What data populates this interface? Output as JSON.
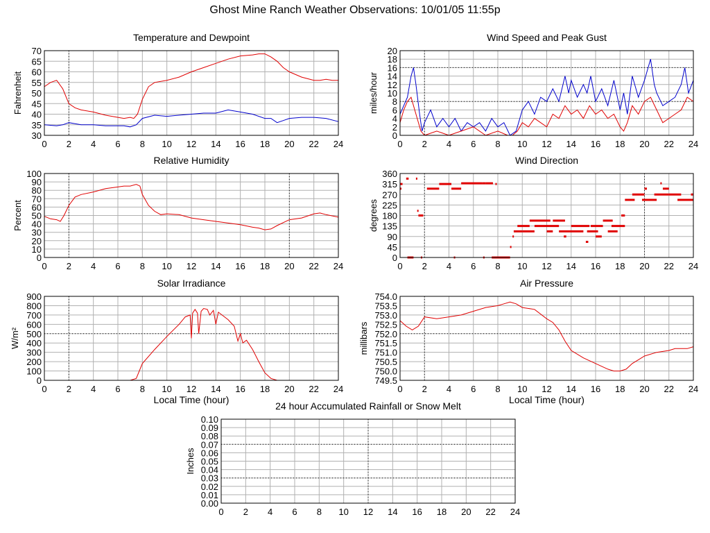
{
  "page_title": "Ghost Mine Ranch Weather Observations: 10/01/05 11:55p",
  "colors": {
    "red": "#e00000",
    "blue": "#0000cc",
    "grid": "#b0b0b0",
    "frame": "#000000"
  },
  "chart_data": [
    {
      "id": "temp",
      "type": "line",
      "title": "Temperature and Dewpoint",
      "xlabel": "",
      "ylabel": "Fahrenheit",
      "xlim": [
        0,
        24
      ],
      "ylim": [
        30,
        70
      ],
      "xticks": [
        "0",
        "2",
        "4",
        "6",
        "8",
        "10",
        "12",
        "14",
        "16",
        "18",
        "20",
        "22",
        "24"
      ],
      "yticks": [
        "30",
        "35",
        "40",
        "45",
        "50",
        "55",
        "60",
        "65",
        "70"
      ],
      "series": [
        {
          "color": "#e00000",
          "x": [
            0,
            0.5,
            1,
            1.5,
            2,
            2.5,
            3,
            4,
            5,
            6,
            6.5,
            7,
            7.3,
            7.6,
            8,
            8.5,
            9,
            10,
            11,
            12,
            13,
            14,
            15,
            16,
            17,
            17.5,
            18,
            18.5,
            19,
            19.5,
            20,
            21,
            22,
            22.5,
            23,
            23.5,
            24
          ],
          "y": [
            53,
            55,
            56,
            52,
            45,
            43,
            42,
            41,
            39.5,
            38.5,
            38,
            38.5,
            38,
            40,
            47,
            53,
            55,
            56,
            57.5,
            60,
            62,
            64,
            66,
            67.5,
            68,
            68.5,
            68.5,
            67,
            65,
            62,
            60,
            57.5,
            56,
            56,
            56.5,
            56,
            56
          ]
        },
        {
          "color": "#0000cc",
          "x": [
            0,
            1,
            1.5,
            2,
            2.5,
            3,
            4,
            5,
            6,
            6.5,
            7,
            7.5,
            8,
            9,
            10,
            11,
            12,
            13,
            14,
            15,
            16,
            17,
            18,
            18.5,
            19,
            19.5,
            20,
            21,
            22,
            23,
            24
          ],
          "y": [
            35,
            34.5,
            35,
            36,
            35.5,
            35,
            35,
            34.5,
            34.5,
            34.5,
            34,
            35,
            38,
            39.5,
            39,
            39.5,
            40,
            40.5,
            40.5,
            42,
            41,
            40,
            38,
            38,
            36,
            37,
            38,
            38.5,
            38.5,
            38,
            36.5
          ]
        }
      ]
    },
    {
      "id": "wind",
      "type": "line",
      "title": "Wind Speed and Peak Gust",
      "xlabel": "",
      "ylabel": "miles/hour",
      "xlim": [
        0,
        24
      ],
      "ylim": [
        0,
        20
      ],
      "xticks": [
        "0",
        "2",
        "4",
        "6",
        "8",
        "10",
        "12",
        "14",
        "16",
        "18",
        "20",
        "22",
        "24"
      ],
      "yticks": [
        "0",
        "2",
        "4",
        "6",
        "8",
        "10",
        "12",
        "14",
        "16",
        "18",
        "20"
      ],
      "series": [
        {
          "color": "#0000cc",
          "x": [
            0,
            0.3,
            0.6,
            0.9,
            1.1,
            1.3,
            1.6,
            1.8,
            2,
            2.5,
            3,
            3.5,
            4,
            4.5,
            5,
            5.5,
            6,
            6.5,
            7,
            7.5,
            8,
            8.5,
            9,
            9.5,
            10,
            10.5,
            11,
            11.5,
            12,
            12.5,
            13,
            13.5,
            13.8,
            14,
            14.5,
            15,
            15.3,
            15.6,
            16,
            16.5,
            17,
            17.5,
            18,
            18.3,
            18.6,
            19,
            19.5,
            20,
            20.3,
            20.5,
            20.8,
            21,
            21.5,
            22,
            22.5,
            23,
            23.3,
            23.6,
            24
          ],
          "y": [
            5,
            7,
            9,
            14,
            16,
            12,
            5,
            1,
            3,
            6,
            2,
            4,
            2,
            4,
            1,
            3,
            2,
            3,
            1,
            4,
            2,
            3,
            0,
            1,
            6,
            8,
            5,
            9,
            8,
            11,
            8,
            14,
            10,
            13,
            9,
            12,
            10,
            14,
            8,
            11,
            7,
            13,
            6,
            10,
            5,
            14,
            9,
            13,
            16,
            18,
            12,
            10,
            7,
            8,
            9,
            12,
            16,
            10,
            13
          ]
        },
        {
          "color": "#e00000",
          "x": [
            0,
            0.3,
            0.6,
            0.9,
            1.1,
            1.4,
            1.7,
            2,
            3,
            4,
            5,
            6,
            7,
            8,
            8.8,
            9.2,
            9.6,
            10,
            10.5,
            11,
            11.5,
            12,
            12.5,
            13,
            13.5,
            14,
            14.5,
            15,
            15.5,
            16,
            16.5,
            17,
            17.5,
            18,
            18.3,
            18.6,
            19,
            19.5,
            20,
            20.5,
            21,
            21.5,
            22,
            22.5,
            23,
            23.5,
            24
          ],
          "y": [
            3,
            6,
            8,
            9,
            7,
            4,
            1,
            0,
            1,
            0,
            1,
            2,
            0,
            1,
            0,
            0,
            1,
            3,
            2,
            4,
            3,
            2,
            5,
            4,
            7,
            5,
            6,
            4,
            7,
            5,
            6,
            4,
            5,
            2,
            1,
            3,
            7,
            5,
            8,
            9,
            6,
            3,
            4,
            5,
            6,
            9,
            8
          ]
        }
      ]
    },
    {
      "id": "rh",
      "type": "line",
      "title": "Relative Humidity",
      "xlabel": "",
      "ylabel": "Percent",
      "xlim": [
        0,
        24
      ],
      "ylim": [
        0,
        100
      ],
      "xticks": [
        "0",
        "2",
        "4",
        "6",
        "8",
        "10",
        "12",
        "14",
        "16",
        "18",
        "20",
        "22",
        "24"
      ],
      "yticks": [
        "0",
        "10",
        "20",
        "30",
        "40",
        "50",
        "60",
        "70",
        "80",
        "90",
        "100"
      ],
      "series": [
        {
          "color": "#e00000",
          "x": [
            0,
            0.5,
            1,
            1.3,
            1.6,
            2,
            2.5,
            3,
            4,
            5,
            6,
            6.5,
            7,
            7.5,
            7.8,
            8,
            8.5,
            9,
            9.5,
            10,
            11,
            12,
            13,
            14,
            15,
            16,
            17,
            17.5,
            18,
            18.5,
            19,
            20,
            21,
            22,
            22.5,
            23,
            24
          ],
          "y": [
            49,
            46,
            45,
            43,
            50,
            62,
            72,
            75,
            78,
            82,
            84,
            85,
            85,
            87,
            85,
            75,
            62,
            55,
            51,
            52,
            51,
            47,
            45,
            43,
            41,
            39,
            36,
            35,
            33,
            34,
            38,
            45,
            47,
            52,
            53,
            51,
            48
          ]
        }
      ]
    },
    {
      "id": "wdir",
      "type": "scatter",
      "title": "Wind Direction",
      "xlabel": "",
      "ylabel": "degrees",
      "xlim": [
        0,
        24
      ],
      "ylim": [
        0,
        360
      ],
      "xticks": [
        "0",
        "2",
        "4",
        "6",
        "8",
        "10",
        "12",
        "14",
        "16",
        "18",
        "20",
        "22",
        "24"
      ],
      "yticks": [
        "0",
        "45",
        "90",
        "135",
        "180",
        "225",
        "270",
        "315",
        "360"
      ],
      "series": [
        {
          "color": "#e00000",
          "segments": [
            [
              0,
              0.2,
              315
            ],
            [
              0,
              0.1,
              295
            ],
            [
              0.5,
              0.7,
              338
            ],
            [
              1.3,
              1.4,
              338
            ],
            [
              0.6,
              1.1,
              0
            ],
            [
              1.4,
              1.5,
              200
            ],
            [
              1.5,
              1.9,
              180
            ],
            [
              1.7,
              1.8,
              0
            ],
            [
              2.2,
              3.2,
              295
            ],
            [
              3.2,
              4.2,
              315
            ],
            [
              4.2,
              5,
              295
            ],
            [
              4.4,
              4.5,
              0
            ],
            [
              5,
              6.7,
              318
            ],
            [
              6.7,
              7,
              318
            ],
            [
              7,
              7.6,
              318
            ],
            [
              7.8,
              7.9,
              315
            ],
            [
              6.8,
              6.9,
              0
            ],
            [
              7.5,
              9,
              0
            ],
            [
              9,
              9.1,
              45
            ],
            [
              9.2,
              9.3,
              90
            ],
            [
              9.3,
              10,
              112
            ],
            [
              9.6,
              10.6,
              135
            ],
            [
              10,
              11,
              112
            ],
            [
              10.6,
              12.3,
              158
            ],
            [
              11,
              13,
              135
            ],
            [
              12,
              12.5,
              112
            ],
            [
              12.5,
              13.5,
              158
            ],
            [
              13,
              15,
              112
            ],
            [
              13.4,
              13.6,
              90
            ],
            [
              14,
              15.5,
              135
            ],
            [
              15.2,
              15.4,
              67
            ],
            [
              15.3,
              16.2,
              112
            ],
            [
              15.6,
              16.6,
              135
            ],
            [
              16,
              16.5,
              90
            ],
            [
              16.6,
              17.4,
              158
            ],
            [
              17,
              17.8,
              112
            ],
            [
              17.3,
              18.4,
              135
            ],
            [
              18.1,
              18.4,
              180
            ],
            [
              18.4,
              19.2,
              247
            ],
            [
              19,
              20,
              270
            ],
            [
              19.8,
              21,
              247
            ],
            [
              20,
              20.2,
              295
            ],
            [
              20.8,
              22,
              270
            ],
            [
              21.3,
              21.4,
              318
            ],
            [
              21.5,
              22,
              295
            ],
            [
              22,
              23,
              270
            ],
            [
              22.7,
              24,
              247
            ],
            [
              23.8,
              24,
              270
            ]
          ]
        }
      ]
    },
    {
      "id": "solar",
      "type": "line",
      "title": "Solar Irradiance",
      "xlabel": "Local Time (hour)",
      "ylabel": "W/m²",
      "xlim": [
        0,
        24
      ],
      "ylim": [
        0,
        900
      ],
      "xticks": [
        "0",
        "2",
        "4",
        "6",
        "8",
        "10",
        "12",
        "14",
        "16",
        "18",
        "20",
        "22",
        "24"
      ],
      "yticks": [
        "0",
        "100",
        "200",
        "300",
        "400",
        "500",
        "600",
        "700",
        "800",
        "900"
      ],
      "series": [
        {
          "color": "#e00000",
          "x": [
            0,
            7,
            7.5,
            8,
            9,
            10,
            11,
            11.5,
            11.9,
            12,
            12.1,
            12.3,
            12.5,
            12.6,
            12.8,
            13,
            13.3,
            13.5,
            13.8,
            14,
            14.2,
            14.5,
            15,
            15.5,
            15.8,
            16,
            16.2,
            16.5,
            17,
            17.5,
            18,
            18.5,
            19,
            20,
            24
          ],
          "y": [
            0,
            0,
            20,
            180,
            330,
            470,
            600,
            680,
            700,
            450,
            720,
            760,
            720,
            500,
            740,
            770,
            760,
            700,
            750,
            600,
            730,
            700,
            650,
            580,
            420,
            500,
            400,
            430,
            330,
            200,
            80,
            20,
            0,
            0,
            0
          ]
        }
      ]
    },
    {
      "id": "pressure",
      "type": "line",
      "title": "Air Pressure",
      "xlabel": "Local Time (hour)",
      "ylabel": "millibars",
      "xlim": [
        0,
        24
      ],
      "ylim": [
        749.5,
        754.0
      ],
      "xticks": [
        "0",
        "2",
        "4",
        "6",
        "8",
        "10",
        "12",
        "14",
        "16",
        "18",
        "20",
        "22",
        "24"
      ],
      "yticks": [
        "749.5",
        "750.0",
        "750.5",
        "751.0",
        "751.5",
        "752.0",
        "752.5",
        "753.0",
        "753.5",
        "754.0"
      ],
      "series": [
        {
          "color": "#e00000",
          "x": [
            0,
            0.5,
            1,
            1.5,
            2,
            3,
            4,
            5,
            6,
            7,
            8,
            8.5,
            9,
            9.5,
            10,
            11,
            12,
            12.5,
            13,
            13.5,
            14,
            15,
            16,
            17,
            17.5,
            18,
            18.5,
            19,
            19.5,
            20,
            21,
            22,
            22.5,
            23,
            23.5,
            24
          ],
          "y": [
            752.7,
            752.4,
            752.2,
            752.4,
            752.9,
            752.8,
            752.9,
            753.0,
            753.2,
            753.4,
            753.5,
            753.6,
            753.7,
            753.6,
            753.4,
            753.3,
            752.8,
            752.6,
            752.2,
            751.6,
            751.1,
            750.7,
            750.4,
            750.1,
            750.0,
            750.0,
            750.1,
            750.4,
            750.6,
            750.8,
            751.0,
            751.1,
            751.2,
            751.2,
            751.2,
            751.3
          ]
        }
      ]
    },
    {
      "id": "rain",
      "type": "line",
      "title": "24 hour Accumulated Rainfall or Snow Melt",
      "xlabel": "",
      "ylabel": "Inches",
      "xlim": [
        0,
        24
      ],
      "ylim": [
        0,
        0.1
      ],
      "xticks": [
        "0",
        "2",
        "4",
        "6",
        "8",
        "10",
        "12",
        "14",
        "16",
        "18",
        "20",
        "22",
        "24"
      ],
      "yticks": [
        "0.00",
        "0.01",
        "0.02",
        "0.03",
        "0.04",
        "0.05",
        "0.06",
        "0.07",
        "0.08",
        "0.09",
        "0.10"
      ],
      "series": [
        {
          "color": "#e00000",
          "x": [
            0,
            24
          ],
          "y": [
            0,
            0
          ]
        }
      ]
    }
  ]
}
